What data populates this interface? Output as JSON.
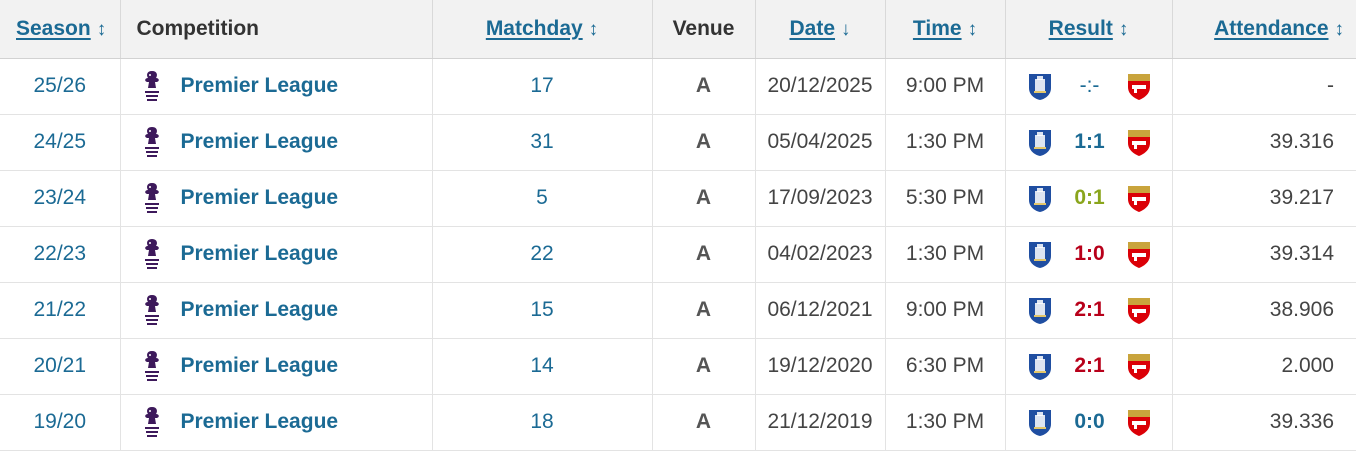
{
  "colors": {
    "link": "#1b6a94",
    "draw": "#1b6a94",
    "win": "#8aa51c",
    "loss": "#b8001a",
    "pending": "#1b6a94"
  },
  "header": {
    "season": "Season",
    "competition": "Competition",
    "matchday": "Matchday",
    "venue": "Venue",
    "date": "Date",
    "time": "Time",
    "result": "Result",
    "attendance": "Attendance"
  },
  "icons": {
    "competition_logo": "premier-league-logo",
    "home_crest": "everton-crest",
    "away_crest": "arsenal-crest",
    "sort_both": "sort-arrows-icon",
    "sort_down": "sort-down-icon"
  },
  "rows": [
    {
      "season": "25/26",
      "competition": "Premier League",
      "matchday": "17",
      "venue": "A",
      "date": "20/12/2025",
      "time": "9:00 PM",
      "result": "-:-",
      "result_status": "pending",
      "attendance": "-"
    },
    {
      "season": "24/25",
      "competition": "Premier League",
      "matchday": "31",
      "venue": "A",
      "date": "05/04/2025",
      "time": "1:30 PM",
      "result": "1:1",
      "result_status": "draw",
      "attendance": "39.316"
    },
    {
      "season": "23/24",
      "competition": "Premier League",
      "matchday": "5",
      "venue": "A",
      "date": "17/09/2023",
      "time": "5:30 PM",
      "result": "0:1",
      "result_status": "win",
      "attendance": "39.217"
    },
    {
      "season": "22/23",
      "competition": "Premier League",
      "matchday": "22",
      "venue": "A",
      "date": "04/02/2023",
      "time": "1:30 PM",
      "result": "1:0",
      "result_status": "loss",
      "attendance": "39.314"
    },
    {
      "season": "21/22",
      "competition": "Premier League",
      "matchday": "15",
      "venue": "A",
      "date": "06/12/2021",
      "time": "9:00 PM",
      "result": "2:1",
      "result_status": "loss",
      "attendance": "38.906"
    },
    {
      "season": "20/21",
      "competition": "Premier League",
      "matchday": "14",
      "venue": "A",
      "date": "19/12/2020",
      "time": "6:30 PM",
      "result": "2:1",
      "result_status": "loss",
      "attendance": "2.000"
    },
    {
      "season": "19/20",
      "competition": "Premier League",
      "matchday": "18",
      "venue": "A",
      "date": "21/12/2019",
      "time": "1:30 PM",
      "result": "0:0",
      "result_status": "draw",
      "attendance": "39.336"
    }
  ]
}
